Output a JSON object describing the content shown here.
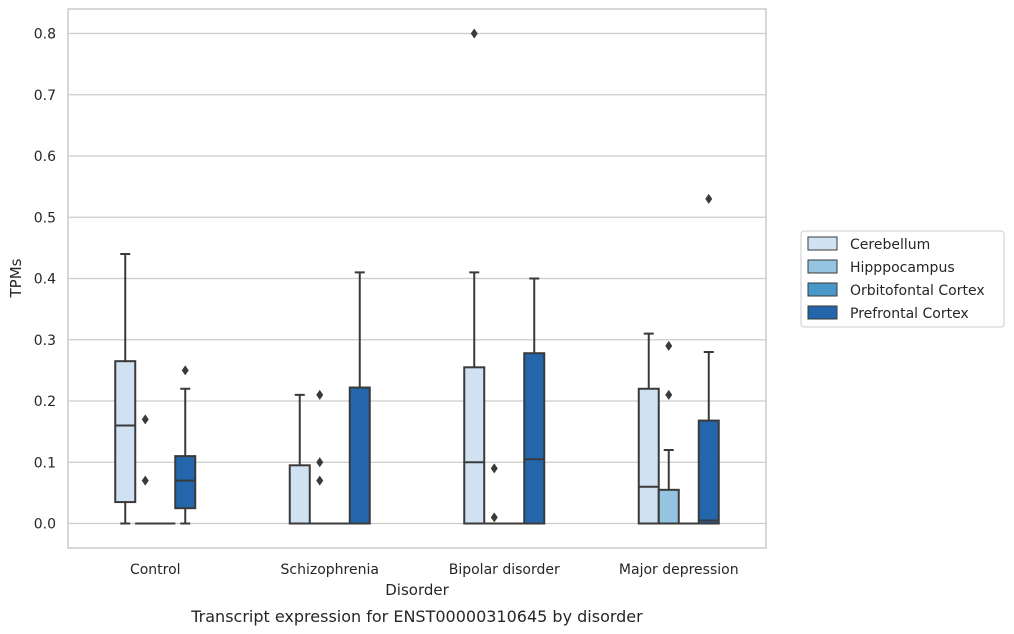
{
  "chart_data": {
    "type": "box",
    "caption": "Transcript expression for ENST00000310645 by disorder",
    "xlabel": "Disorder",
    "ylabel": "TPMs",
    "ylim": [
      -0.04,
      0.84
    ],
    "yticks": [
      0.0,
      0.1,
      0.2,
      0.3,
      0.4,
      0.5,
      0.6,
      0.7,
      0.8
    ],
    "ytick_labels": [
      "0.0",
      "0.1",
      "0.2",
      "0.3",
      "0.4",
      "0.5",
      "0.6",
      "0.7",
      "0.8"
    ],
    "grid": true,
    "legend_position": "outside-right",
    "categories": [
      "Control",
      "Schizophrenia",
      "Bipolar disorder",
      "Major depression"
    ],
    "series": [
      {
        "name": "Cerebellum",
        "color": "#d0e1f2",
        "boxes": [
          {
            "whisker_low": 0.0,
            "q1": 0.035,
            "median": 0.16,
            "q3": 0.265,
            "whisker_high": 0.44,
            "outliers": []
          },
          {
            "whisker_low": 0.0,
            "q1": 0.0,
            "median": 0.0,
            "q3": 0.095,
            "whisker_high": 0.21,
            "outliers": []
          },
          {
            "whisker_low": 0.0,
            "q1": 0.0,
            "median": 0.1,
            "q3": 0.255,
            "whisker_high": 0.41,
            "outliers": [
              0.8
            ]
          },
          {
            "whisker_low": 0.0,
            "q1": 0.0,
            "median": 0.06,
            "q3": 0.22,
            "whisker_high": 0.31,
            "outliers": []
          }
        ]
      },
      {
        "name": "Hipppocampus",
        "color": "#94c4df",
        "boxes": [
          {
            "whisker_low": 0.0,
            "q1": 0.0,
            "median": 0.0,
            "q3": 0.0,
            "whisker_high": 0.0,
            "outliers": [
              0.07,
              0.17
            ]
          },
          {
            "whisker_low": 0.0,
            "q1": 0.0,
            "median": 0.0,
            "q3": 0.0,
            "whisker_high": 0.0,
            "outliers": [
              0.07,
              0.1,
              0.21
            ]
          },
          {
            "whisker_low": 0.0,
            "q1": 0.0,
            "median": 0.0,
            "q3": 0.0,
            "whisker_high": 0.0,
            "outliers": [
              0.01,
              0.09
            ]
          },
          {
            "whisker_low": 0.0,
            "q1": 0.0,
            "median": 0.0,
            "q3": 0.055,
            "whisker_high": 0.12,
            "outliers": [
              0.21,
              0.29
            ]
          }
        ]
      },
      {
        "name": "Orbitofontal Cortex",
        "color": "#4a98c9",
        "boxes": [
          {
            "whisker_low": 0.0,
            "q1": 0.0,
            "median": 0.0,
            "q3": 0.0,
            "whisker_high": 0.0,
            "outliers": []
          },
          {
            "whisker_low": 0.0,
            "q1": 0.0,
            "median": 0.0,
            "q3": 0.0,
            "whisker_high": 0.0,
            "outliers": []
          },
          {
            "whisker_low": 0.0,
            "q1": 0.0,
            "median": 0.0,
            "q3": 0.0,
            "whisker_high": 0.0,
            "outliers": []
          },
          {
            "whisker_low": 0.0,
            "q1": 0.0,
            "median": 0.0,
            "q3": 0.0,
            "whisker_high": 0.0,
            "outliers": []
          }
        ]
      },
      {
        "name": "Prefrontal Cortex",
        "color": "#2366ac",
        "boxes": [
          {
            "whisker_low": 0.0,
            "q1": 0.025,
            "median": 0.07,
            "q3": 0.11,
            "whisker_high": 0.22,
            "outliers": [
              0.25
            ]
          },
          {
            "whisker_low": 0.0,
            "q1": 0.0,
            "median": 0.0,
            "q3": 0.222,
            "whisker_high": 0.41,
            "outliers": []
          },
          {
            "whisker_low": 0.0,
            "q1": 0.0,
            "median": 0.105,
            "q3": 0.278,
            "whisker_high": 0.4,
            "outliers": []
          },
          {
            "whisker_low": 0.0,
            "q1": 0.0,
            "median": 0.005,
            "q3": 0.168,
            "whisker_high": 0.28,
            "outliers": [
              0.53
            ]
          }
        ]
      }
    ]
  }
}
